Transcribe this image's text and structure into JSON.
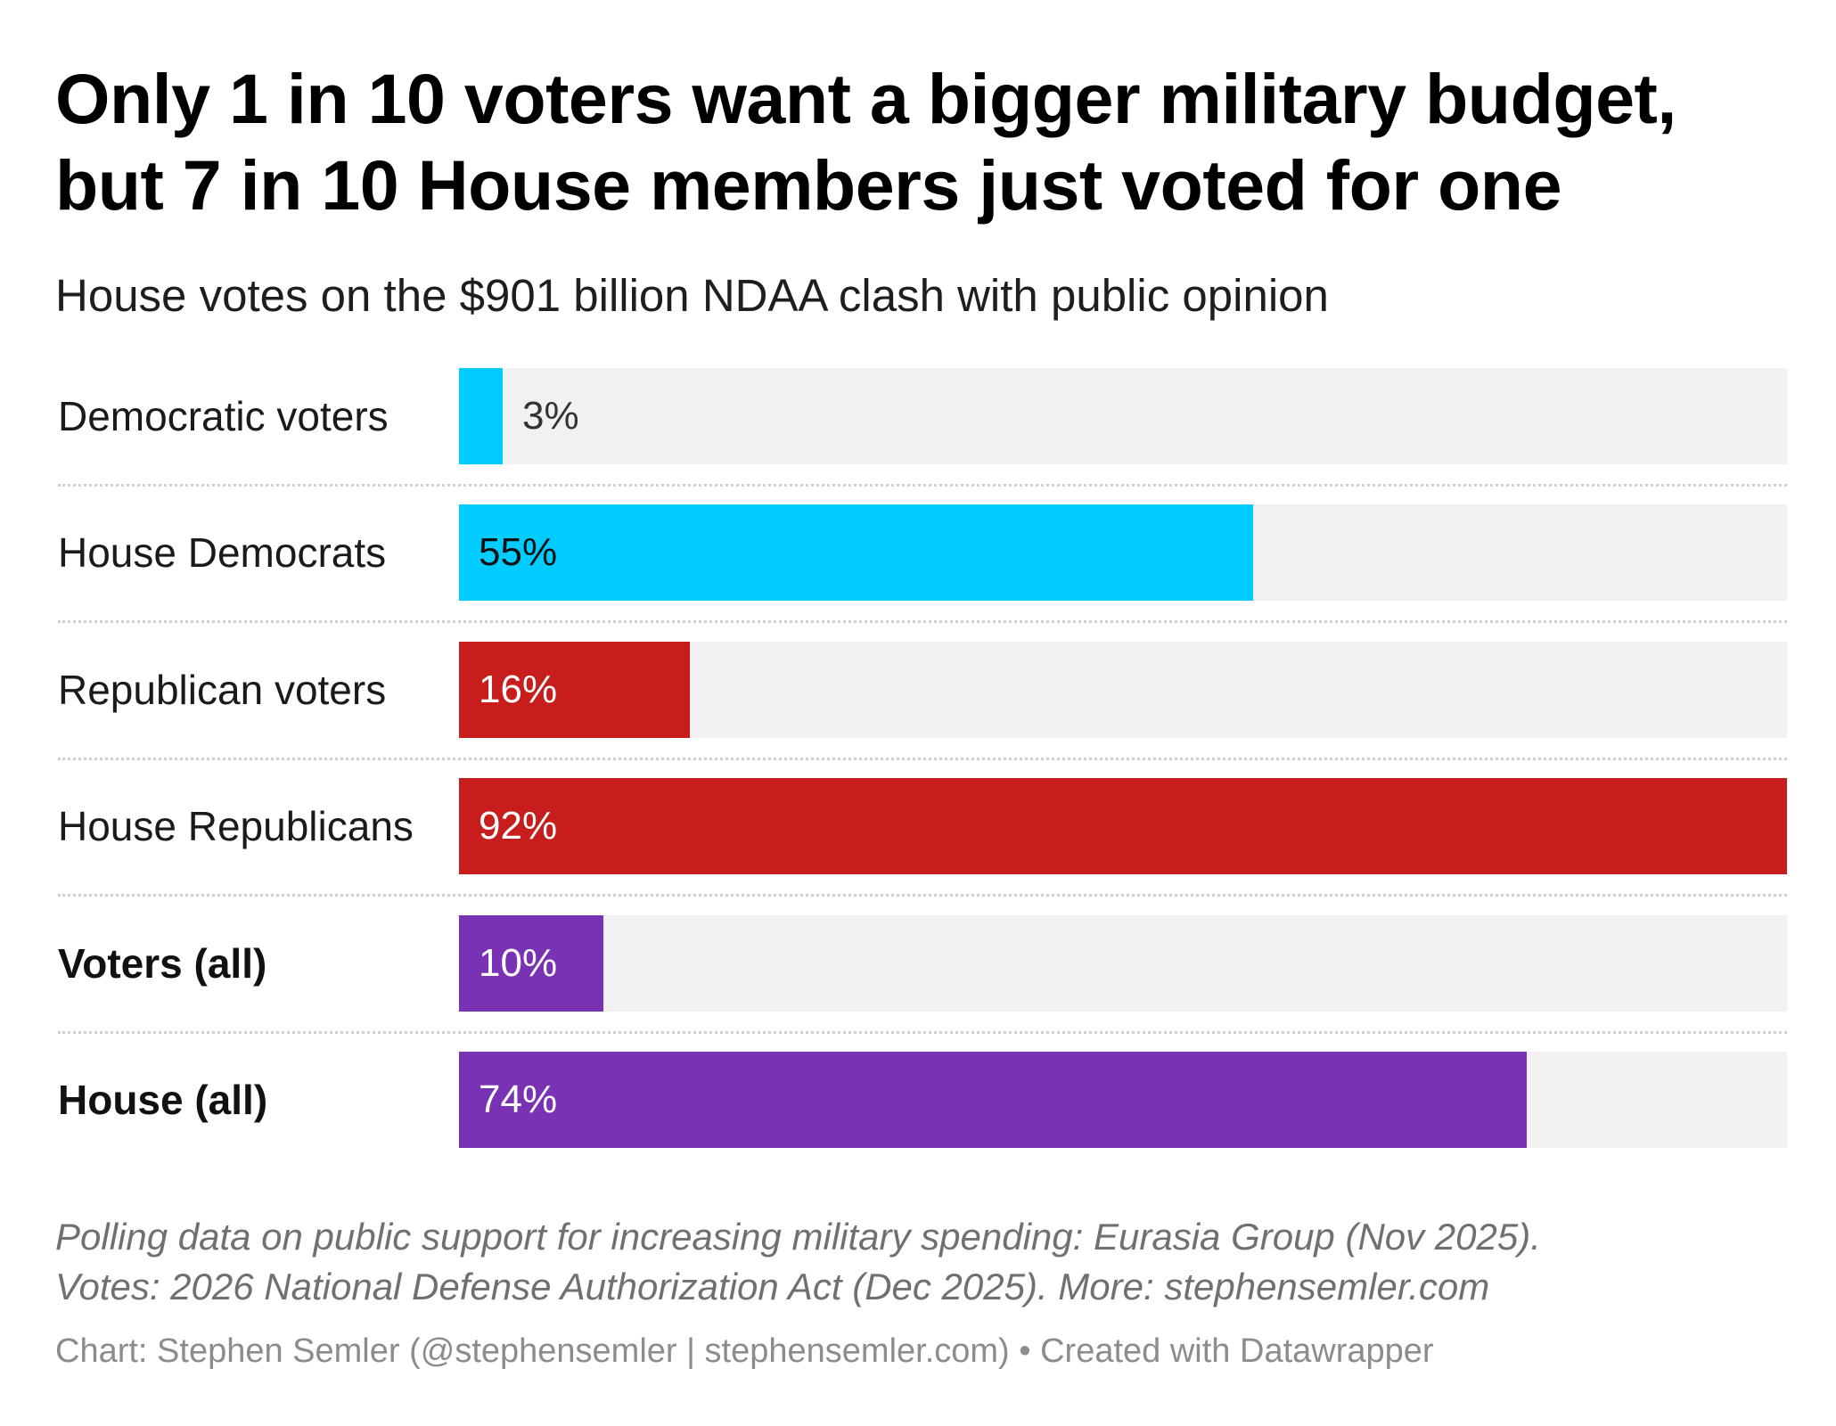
{
  "header": {
    "title_line1": "Only 1 in 10 voters want a bigger military budget,",
    "title_line2": "but 7 in 10 House members just voted for one",
    "subtitle": "House votes on the $901 billion NDAA clash with public opinion"
  },
  "chart_data": {
    "type": "bar",
    "orientation": "horizontal",
    "title": "Only 1 in 10 voters want a bigger military budget, but 7 in 10 House members just voted for one",
    "subtitle": "House votes on the $901 billion NDAA clash with public opinion",
    "xlabel": "",
    "ylabel": "",
    "xlim": [
      0,
      92
    ],
    "unit": "%",
    "grid": false,
    "categories": [
      "Democratic voters",
      "House Democrats",
      "Republican voters",
      "House Republicans",
      "Voters (all)",
      "House (all)"
    ],
    "values": [
      3,
      55,
      16,
      92,
      10,
      74
    ],
    "value_labels": [
      "3%",
      "55%",
      "16%",
      "92%",
      "10%",
      "74%"
    ],
    "bold_categories": [
      false,
      false,
      false,
      false,
      true,
      true
    ],
    "colors": [
      "#00ccff",
      "#00ccff",
      "#c71e1d",
      "#c71e1d",
      "#7a32b5",
      "#7a32b5"
    ],
    "label_colors": [
      "#333333",
      "#111111",
      "#ffffff",
      "#ffffff",
      "#ffffff",
      "#ffffff"
    ],
    "track_color": "#f1f1f1"
  },
  "footer": {
    "notes_line1": "Polling data on public support for increasing military spending: Eurasia Group (Nov 2025).",
    "notes_line2": "Votes: 2026 National Defense Authorization Act (Dec 2025). More: stephensemler.com",
    "credit": "Chart: Stephen Semler (@stephensemler | stephensemler.com) • Created with Datawrapper"
  }
}
